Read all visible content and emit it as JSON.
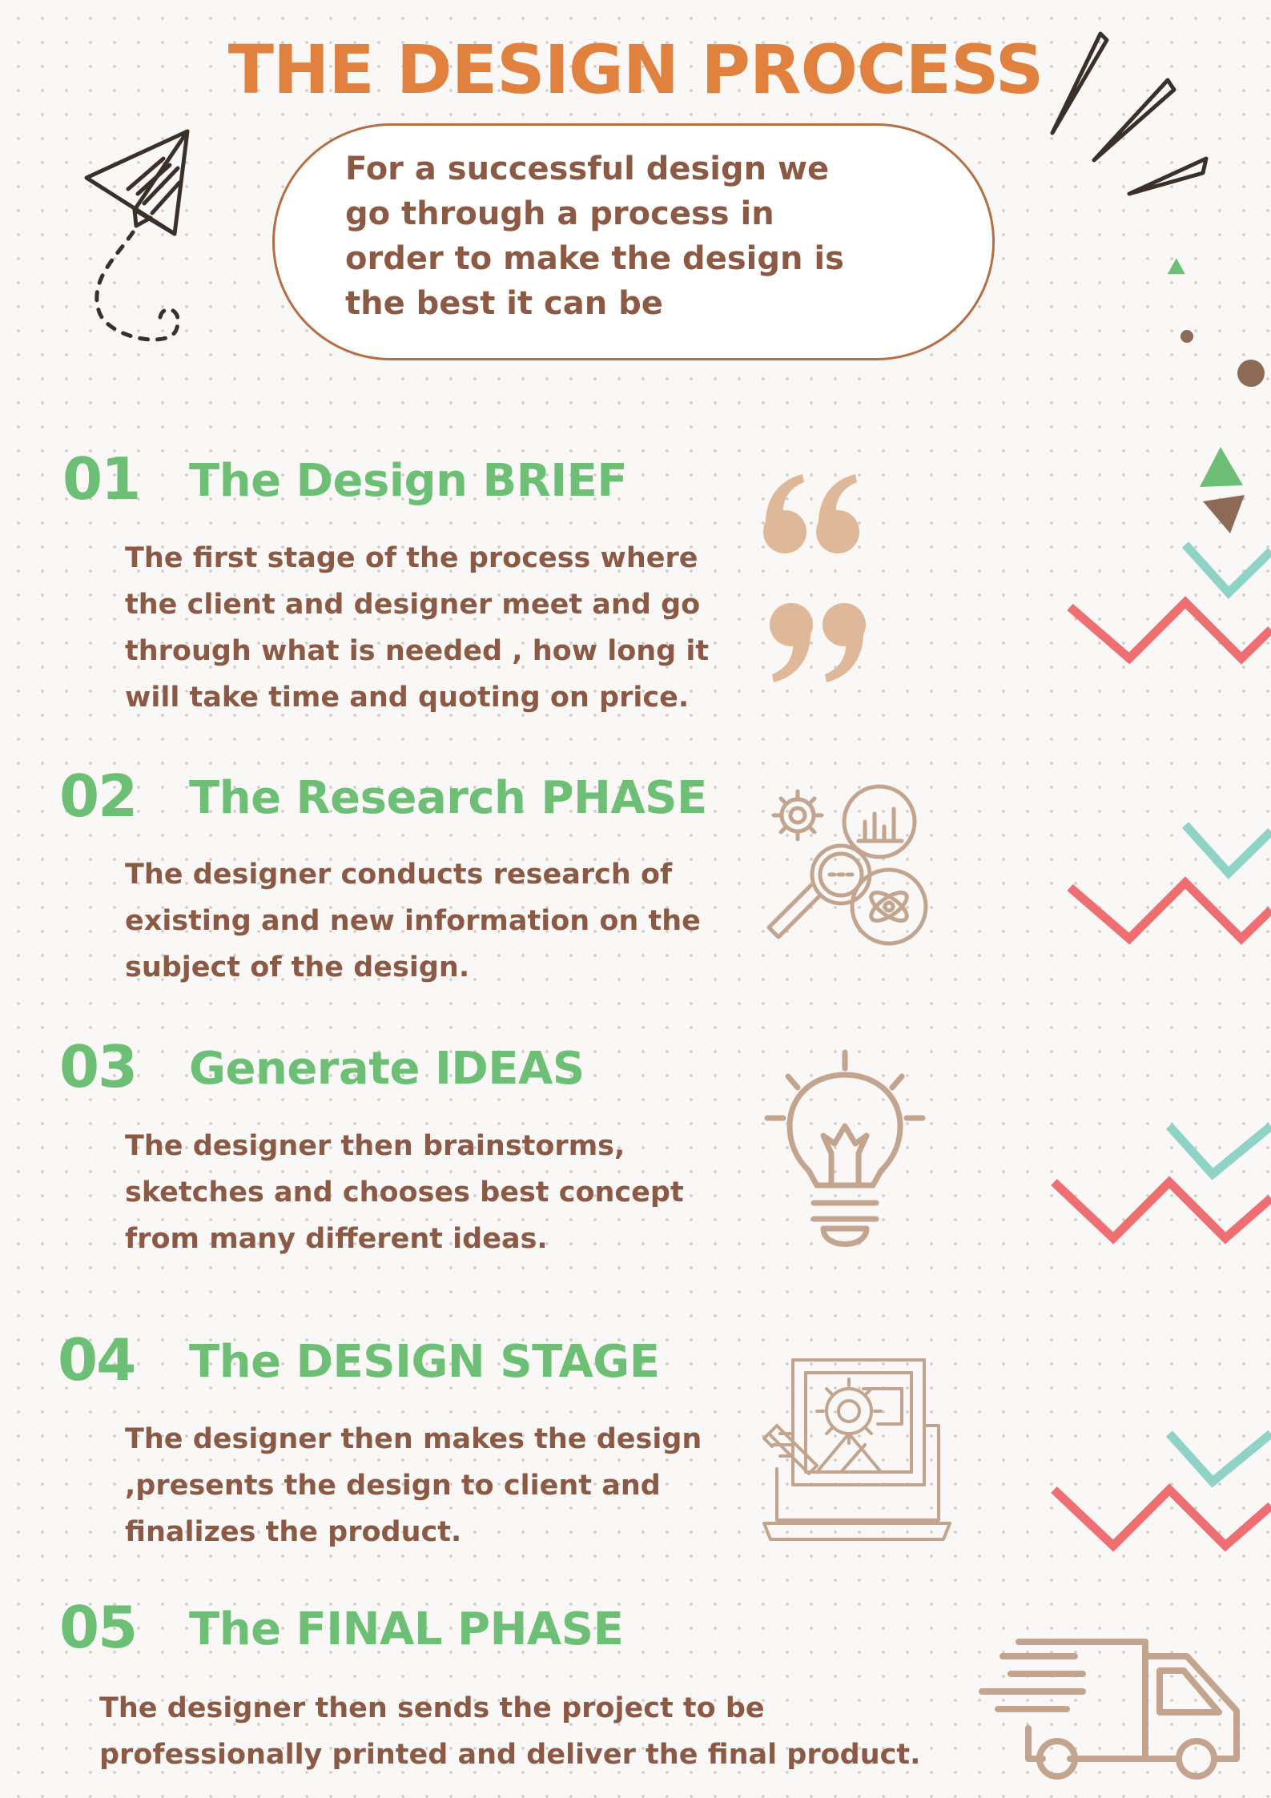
{
  "title": "THE DESIGN PROCESS",
  "intro": "For a successful design we go through a process in order to make the design is the best it can be",
  "colors": {
    "title": "#e0813f",
    "accent_green": "#6cbf74",
    "text_brown": "#8c5a44",
    "icon_tan": "#c3a48e",
    "zigzag_red": "#ee6e72",
    "zigzag_teal": "#8fd3c6"
  },
  "steps": [
    {
      "number": "01",
      "title": "The Design BRIEF",
      "body": "The first stage of the process where the client and designer meet and go through what is needed , how long it will take time and quoting on price.",
      "icon": "quote-marks-icon"
    },
    {
      "number": "02",
      "title": "The Research PHASE",
      "body": "The designer conducts research of existing and new information on the subject of the design.",
      "icon": "research-icon"
    },
    {
      "number": "03",
      "title": "Generate IDEAS",
      "body": "The designer then brainstorms, sketches and chooses best concept from many different ideas.",
      "icon": "lightbulb-icon"
    },
    {
      "number": "04",
      "title": "The DESIGN STAGE",
      "body": "The designer then makes the design ,presents the design to client and finalizes the product.",
      "icon": "design-stage-icon"
    },
    {
      "number": "05",
      "title": "The FINAL PHASE",
      "body": "The designer then sends the project to be professionally printed and deliver the final product.",
      "icon": "delivery-truck-icon"
    }
  ]
}
